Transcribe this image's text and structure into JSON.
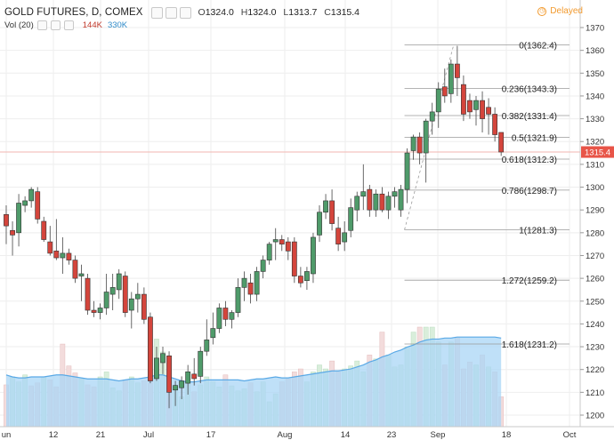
{
  "header": {
    "symbol_title": "GOLD FUTURES, D, COMEX",
    "ohlc": {
      "o_label": "O",
      "o": "1324.0",
      "h_label": "H",
      "h": "1324.0",
      "l_label": "L",
      "l": "1313.7",
      "c_label": "C",
      "c": "1315.4"
    },
    "volume_label": "Vol (20)",
    "volume_value": "144K",
    "volume_ma": "330K",
    "delayed_label": "Delayed",
    "delayed_icon": "clock-icon"
  },
  "colors": {
    "up": "#4f9b6a",
    "down": "#d4453c",
    "vol_up": "#d9eedb",
    "vol_down": "#f3dcdc",
    "vol_ma_fill": "#a9d6f5",
    "vol_ma_line": "#5aa9e6",
    "price_line": "#f2b6b0",
    "fib_line": "#9a9a9a",
    "last_price_bg": "#e85548"
  },
  "chart_data": {
    "type": "candlestick",
    "title": "GOLD FUTURES, D, COMEX",
    "y_ticks": [
      1200,
      1210,
      1220,
      1230,
      1240,
      1250,
      1260,
      1270,
      1280,
      1290,
      1300,
      1310,
      1320,
      1330,
      1340,
      1350,
      1360,
      1370
    ],
    "ylim": [
      1196,
      1372
    ],
    "x_tick_labels": [
      "un",
      "12",
      "21",
      "Jul",
      "17",
      "Aug",
      "14",
      "23",
      "Sep",
      "18",
      "Oct"
    ],
    "last_price": 1315.4,
    "last_price_label": "1315.4",
    "grid": true,
    "candles": [
      {
        "o": 1288,
        "h": 1292,
        "l": 1275,
        "c": 1283
      },
      {
        "o": 1281,
        "h": 1285,
        "l": 1270,
        "c": 1279
      },
      {
        "o": 1280,
        "h": 1297,
        "l": 1274,
        "c": 1293
      },
      {
        "o": 1292,
        "h": 1296,
        "l": 1289,
        "c": 1294
      },
      {
        "o": 1294,
        "h": 1300,
        "l": 1291,
        "c": 1299
      },
      {
        "o": 1298,
        "h": 1300,
        "l": 1284,
        "c": 1286
      },
      {
        "o": 1285,
        "h": 1287,
        "l": 1276,
        "c": 1277
      },
      {
        "o": 1276,
        "h": 1283,
        "l": 1270,
        "c": 1271
      },
      {
        "o": 1272,
        "h": 1286,
        "l": 1268,
        "c": 1269
      },
      {
        "o": 1269,
        "h": 1278,
        "l": 1262,
        "c": 1271
      },
      {
        "o": 1271,
        "h": 1273,
        "l": 1266,
        "c": 1268
      },
      {
        "o": 1268,
        "h": 1270,
        "l": 1258,
        "c": 1260
      },
      {
        "o": 1261,
        "h": 1266,
        "l": 1250,
        "c": 1262
      },
      {
        "o": 1260,
        "h": 1262,
        "l": 1244,
        "c": 1246
      },
      {
        "o": 1246,
        "h": 1250,
        "l": 1243,
        "c": 1245
      },
      {
        "o": 1245,
        "h": 1249,
        "l": 1242,
        "c": 1247
      },
      {
        "o": 1247,
        "h": 1262,
        "l": 1244,
        "c": 1254
      },
      {
        "o": 1253,
        "h": 1262,
        "l": 1246,
        "c": 1256
      },
      {
        "o": 1255,
        "h": 1264,
        "l": 1251,
        "c": 1262
      },
      {
        "o": 1261,
        "h": 1263,
        "l": 1243,
        "c": 1245
      },
      {
        "o": 1246,
        "h": 1254,
        "l": 1238,
        "c": 1251
      },
      {
        "o": 1251,
        "h": 1258,
        "l": 1245,
        "c": 1253
      },
      {
        "o": 1253,
        "h": 1256,
        "l": 1240,
        "c": 1242
      },
      {
        "o": 1243,
        "h": 1245,
        "l": 1214,
        "c": 1215
      },
      {
        "o": 1216,
        "h": 1230,
        "l": 1215,
        "c": 1225
      },
      {
        "o": 1223,
        "h": 1230,
        "l": 1218,
        "c": 1227
      },
      {
        "o": 1226,
        "h": 1228,
        "l": 1203,
        "c": 1210
      },
      {
        "o": 1211,
        "h": 1215,
        "l": 1204,
        "c": 1213
      },
      {
        "o": 1212,
        "h": 1217,
        "l": 1207,
        "c": 1215
      },
      {
        "o": 1214,
        "h": 1222,
        "l": 1209,
        "c": 1219
      },
      {
        "o": 1218,
        "h": 1225,
        "l": 1213,
        "c": 1216
      },
      {
        "o": 1217,
        "h": 1230,
        "l": 1214,
        "c": 1228
      },
      {
        "o": 1228,
        "h": 1242,
        "l": 1226,
        "c": 1233
      },
      {
        "o": 1234,
        "h": 1245,
        "l": 1231,
        "c": 1238
      },
      {
        "o": 1238,
        "h": 1249,
        "l": 1236,
        "c": 1247
      },
      {
        "o": 1247,
        "h": 1250,
        "l": 1239,
        "c": 1242
      },
      {
        "o": 1242,
        "h": 1246,
        "l": 1238,
        "c": 1245
      },
      {
        "o": 1245,
        "h": 1260,
        "l": 1243,
        "c": 1256
      },
      {
        "o": 1256,
        "h": 1263,
        "l": 1250,
        "c": 1260
      },
      {
        "o": 1258,
        "h": 1262,
        "l": 1249,
        "c": 1253
      },
      {
        "o": 1253,
        "h": 1265,
        "l": 1250,
        "c": 1263
      },
      {
        "o": 1263,
        "h": 1270,
        "l": 1260,
        "c": 1268
      },
      {
        "o": 1268,
        "h": 1276,
        "l": 1266,
        "c": 1275
      },
      {
        "o": 1276,
        "h": 1282,
        "l": 1268,
        "c": 1277
      },
      {
        "o": 1277,
        "h": 1279,
        "l": 1272,
        "c": 1275
      },
      {
        "o": 1276,
        "h": 1278,
        "l": 1268,
        "c": 1272
      },
      {
        "o": 1276,
        "h": 1278,
        "l": 1258,
        "c": 1261
      },
      {
        "o": 1261,
        "h": 1265,
        "l": 1256,
        "c": 1258
      },
      {
        "o": 1259,
        "h": 1265,
        "l": 1255,
        "c": 1263
      },
      {
        "o": 1262,
        "h": 1280,
        "l": 1258,
        "c": 1278
      },
      {
        "o": 1279,
        "h": 1292,
        "l": 1276,
        "c": 1289
      },
      {
        "o": 1289,
        "h": 1297,
        "l": 1286,
        "c": 1294
      },
      {
        "o": 1294,
        "h": 1299,
        "l": 1281,
        "c": 1284
      },
      {
        "o": 1282,
        "h": 1287,
        "l": 1272,
        "c": 1275
      },
      {
        "o": 1276,
        "h": 1285,
        "l": 1272,
        "c": 1280
      },
      {
        "o": 1281,
        "h": 1295,
        "l": 1278,
        "c": 1291
      },
      {
        "o": 1290,
        "h": 1298,
        "l": 1285,
        "c": 1296
      },
      {
        "o": 1296,
        "h": 1310,
        "l": 1290,
        "c": 1298
      },
      {
        "o": 1299,
        "h": 1301,
        "l": 1287,
        "c": 1290
      },
      {
        "o": 1290,
        "h": 1299,
        "l": 1287,
        "c": 1297
      },
      {
        "o": 1297,
        "h": 1300,
        "l": 1289,
        "c": 1290
      },
      {
        "o": 1290,
        "h": 1298,
        "l": 1286,
        "c": 1296
      },
      {
        "o": 1296,
        "h": 1300,
        "l": 1291,
        "c": 1298
      },
      {
        "o": 1290,
        "h": 1301,
        "l": 1287,
        "c": 1299
      },
      {
        "o": 1299,
        "h": 1317,
        "l": 1293,
        "c": 1315
      },
      {
        "o": 1316,
        "h": 1323,
        "l": 1312,
        "c": 1322
      },
      {
        "o": 1322,
        "h": 1324,
        "l": 1310,
        "c": 1315
      },
      {
        "o": 1315,
        "h": 1330,
        "l": 1302,
        "c": 1329
      },
      {
        "o": 1329,
        "h": 1337,
        "l": 1323,
        "c": 1333
      },
      {
        "o": 1333,
        "h": 1346,
        "l": 1326,
        "c": 1343
      },
      {
        "o": 1344,
        "h": 1352,
        "l": 1337,
        "c": 1340
      },
      {
        "o": 1341,
        "h": 1356,
        "l": 1337,
        "c": 1354
      },
      {
        "o": 1354,
        "h": 1362,
        "l": 1340,
        "c": 1348
      },
      {
        "o": 1345,
        "h": 1349,
        "l": 1329,
        "c": 1332
      },
      {
        "o": 1338,
        "h": 1341,
        "l": 1330,
        "c": 1333
      },
      {
        "o": 1334,
        "h": 1340,
        "l": 1327,
        "c": 1338
      },
      {
        "o": 1338,
        "h": 1342,
        "l": 1324,
        "c": 1330
      },
      {
        "o": 1335,
        "h": 1339,
        "l": 1323,
        "c": 1332
      },
      {
        "o": 1332,
        "h": 1335,
        "l": 1320,
        "c": 1323
      },
      {
        "o": 1324,
        "h": 1324,
        "l": 1313.7,
        "c": 1315.4
      }
    ],
    "volume": [
      {
        "v": 0.42,
        "up": false
      },
      {
        "v": 0.5,
        "up": true
      },
      {
        "v": 0.45,
        "up": true
      },
      {
        "v": 0.52,
        "up": true
      },
      {
        "v": 0.41,
        "up": false
      },
      {
        "v": 0.44,
        "up": false
      },
      {
        "v": 0.5,
        "up": true
      },
      {
        "v": 0.47,
        "up": false
      },
      {
        "v": 0.4,
        "up": false
      },
      {
        "v": 0.83,
        "up": false
      },
      {
        "v": 0.61,
        "up": false
      },
      {
        "v": 0.54,
        "up": false
      },
      {
        "v": 0.48,
        "up": true
      },
      {
        "v": 0.42,
        "up": false
      },
      {
        "v": 0.4,
        "up": false
      },
      {
        "v": 0.5,
        "up": true
      },
      {
        "v": 0.55,
        "up": true
      },
      {
        "v": 0.39,
        "up": true
      },
      {
        "v": 0.36,
        "up": true
      },
      {
        "v": 0.47,
        "up": false
      },
      {
        "v": 0.5,
        "up": true
      },
      {
        "v": 0.44,
        "up": true
      },
      {
        "v": 0.46,
        "up": false
      },
      {
        "v": 0.52,
        "up": false
      },
      {
        "v": 0.88,
        "up": true
      },
      {
        "v": 0.75,
        "up": true
      },
      {
        "v": 0.44,
        "up": false
      },
      {
        "v": 0.42,
        "up": true
      },
      {
        "v": 0.3,
        "up": true
      },
      {
        "v": 0.45,
        "up": true
      },
      {
        "v": 0.35,
        "up": false
      },
      {
        "v": 0.42,
        "up": true
      },
      {
        "v": 0.5,
        "up": true
      },
      {
        "v": 0.45,
        "up": true
      },
      {
        "v": 0.4,
        "up": true
      },
      {
        "v": 0.52,
        "up": false
      },
      {
        "v": 0.41,
        "up": true
      },
      {
        "v": 0.36,
        "up": true
      },
      {
        "v": 0.38,
        "up": true
      },
      {
        "v": 0.44,
        "up": false
      },
      {
        "v": 0.35,
        "up": true
      },
      {
        "v": 0.45,
        "up": true
      },
      {
        "v": 0.25,
        "up": true
      },
      {
        "v": 0.33,
        "up": true
      },
      {
        "v": 0.45,
        "up": false
      },
      {
        "v": 0.48,
        "up": false
      },
      {
        "v": 0.55,
        "up": false
      },
      {
        "v": 0.58,
        "up": false
      },
      {
        "v": 0.45,
        "up": true
      },
      {
        "v": 0.55,
        "up": true
      },
      {
        "v": 0.62,
        "up": true
      },
      {
        "v": 0.58,
        "up": true
      },
      {
        "v": 0.66,
        "up": false
      },
      {
        "v": 0.55,
        "up": false
      },
      {
        "v": 0.58,
        "up": true
      },
      {
        "v": 0.61,
        "up": true
      },
      {
        "v": 0.66,
        "up": true
      },
      {
        "v": 0.55,
        "up": true
      },
      {
        "v": 0.72,
        "up": false
      },
      {
        "v": 0.68,
        "up": true
      },
      {
        "v": 0.95,
        "up": false
      },
      {
        "v": 0.72,
        "up": true
      },
      {
        "v": 0.6,
        "up": true
      },
      {
        "v": 0.62,
        "up": true
      },
      {
        "v": 0.8,
        "up": true
      },
      {
        "v": 0.95,
        "up": true
      },
      {
        "v": 1.0,
        "up": false
      },
      {
        "v": 1.0,
        "up": true
      },
      {
        "v": 1.0,
        "up": true
      },
      {
        "v": 0.85,
        "up": true
      },
      {
        "v": 0.62,
        "up": false
      },
      {
        "v": 0.85,
        "up": true
      },
      {
        "v": 0.9,
        "up": false
      },
      {
        "v": 0.58,
        "up": false
      },
      {
        "v": 0.65,
        "up": false
      },
      {
        "v": 0.62,
        "up": true
      },
      {
        "v": 0.72,
        "up": false
      },
      {
        "v": 0.6,
        "up": true
      },
      {
        "v": 0.55,
        "up": false
      },
      {
        "v": 0.3,
        "up": false
      }
    ],
    "volume_ma": [
      0.52,
      0.5,
      0.49,
      0.49,
      0.5,
      0.5,
      0.5,
      0.51,
      0.52,
      0.52,
      0.51,
      0.5,
      0.49,
      0.48,
      0.48,
      0.48,
      0.48,
      0.47,
      0.46,
      0.47,
      0.48,
      0.48,
      0.49,
      0.5,
      0.52,
      0.52,
      0.5,
      0.48,
      0.46,
      0.45,
      0.45,
      0.46,
      0.47,
      0.47,
      0.47,
      0.47,
      0.47,
      0.47,
      0.46,
      0.47,
      0.48,
      0.48,
      0.49,
      0.5,
      0.49,
      0.49,
      0.5,
      0.51,
      0.52,
      0.53,
      0.54,
      0.55,
      0.56,
      0.56,
      0.57,
      0.58,
      0.6,
      0.62,
      0.65,
      0.67,
      0.7,
      0.72,
      0.75,
      0.77,
      0.8,
      0.82,
      0.85,
      0.87,
      0.88,
      0.88,
      0.89,
      0.89,
      0.9,
      0.9,
      0.9,
      0.9,
      0.9,
      0.9,
      0.9,
      0.89
    ],
    "fibonacci": {
      "start_index": 64,
      "levels": [
        {
          "ratio": "0",
          "price": 1362.4,
          "label": "0(1362.4)"
        },
        {
          "ratio": "0.236",
          "price": 1343.3,
          "label": "0.236(1343.3)"
        },
        {
          "ratio": "0.382",
          "price": 1331.4,
          "label": "0.382(1331.4)"
        },
        {
          "ratio": "0.5",
          "price": 1321.9,
          "label": "0.5(1321.9)"
        },
        {
          "ratio": "0.618",
          "price": 1312.3,
          "label": "0.618(1312.3)"
        },
        {
          "ratio": "0.786",
          "price": 1298.7,
          "label": "0.786(1298.7)"
        },
        {
          "ratio": "1",
          "price": 1281.3,
          "label": "1(1281.3)"
        },
        {
          "ratio": "1.272",
          "price": 1259.2,
          "label": "1.272(1259.2)"
        },
        {
          "ratio": "1.618",
          "price": 1231.2,
          "label": "1.618(1231.2)"
        }
      ]
    }
  }
}
